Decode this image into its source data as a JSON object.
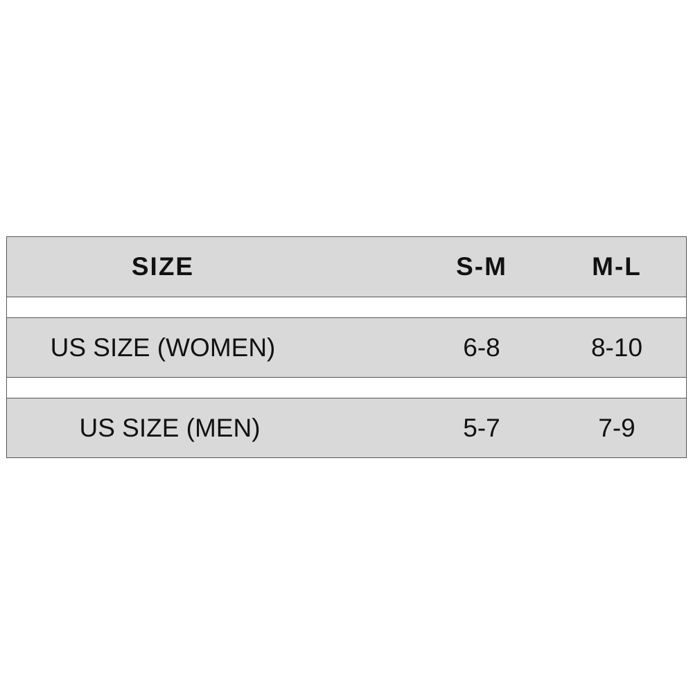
{
  "table": {
    "header": [
      "SIZE",
      "S-M",
      "M-L"
    ],
    "rows": [
      [
        "US SIZE (WOMEN)",
        "6-8",
        "8-10"
      ],
      [
        "US SIZE (MEN)",
        "5-7",
        "7-9"
      ]
    ],
    "row_fill_color": "#d9d9d9",
    "border_color": "#555555"
  }
}
